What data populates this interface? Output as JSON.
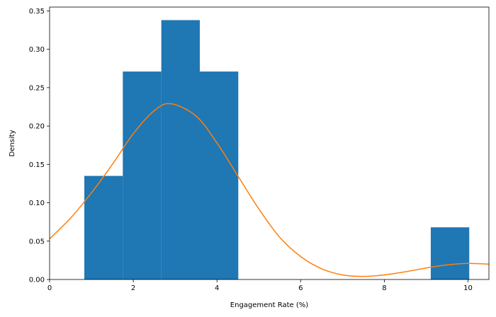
{
  "chart_data": {
    "type": "bar",
    "subtype": "histogram_with_kde",
    "title": "",
    "xlabel": "Engagement Rate (%)",
    "ylabel": "Density",
    "xlim": [
      0,
      10.5
    ],
    "ylim": [
      0,
      0.355
    ],
    "grid": false,
    "legend": null,
    "xticks": [
      0,
      2,
      4,
      6,
      8,
      10
    ],
    "xtick_labels": [
      "0",
      "2",
      "4",
      "6",
      "8",
      "10"
    ],
    "yticks": [
      0.0,
      0.05,
      0.1,
      0.15,
      0.2,
      0.25,
      0.3,
      0.35
    ],
    "ytick_labels": [
      "0.00",
      "0.05",
      "0.10",
      "0.15",
      "0.20",
      "0.25",
      "0.30",
      "0.35"
    ],
    "histogram": {
      "color": "#1f77b4",
      "bin_edges": [
        0.83,
        1.75,
        2.67,
        3.59,
        4.51,
        5.43,
        6.35,
        7.27,
        8.19,
        9.11,
        10.03
      ],
      "densities": [
        0.135,
        0.271,
        0.338,
        0.271,
        0.0,
        0.0,
        0.0,
        0.0,
        0.0,
        0.068
      ]
    },
    "series": [
      {
        "name": "KDE",
        "type": "line",
        "color": "#ff7f0e",
        "x": [
          0,
          0.5,
          1.0,
          1.5,
          2.0,
          2.5,
          2.9,
          3.5,
          4.0,
          4.5,
          5.0,
          5.5,
          6.0,
          6.5,
          7.0,
          7.5,
          8.0,
          8.5,
          9.0,
          9.5,
          10.0,
          10.5
        ],
        "values": [
          0.053,
          0.08,
          0.113,
          0.15,
          0.19,
          0.22,
          0.229,
          0.213,
          0.178,
          0.135,
          0.092,
          0.055,
          0.03,
          0.014,
          0.006,
          0.004,
          0.006,
          0.01,
          0.015,
          0.019,
          0.021,
          0.02
        ]
      }
    ]
  }
}
